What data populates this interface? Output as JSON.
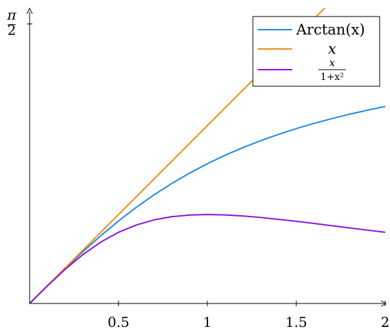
{
  "chart_data": {
    "type": "line",
    "xlim": [
      0,
      2
    ],
    "ylim": [
      0,
      1.66
    ],
    "grid": false,
    "legend_position": "top-right",
    "x_ticks": [
      {
        "value": 0.5,
        "label": "0.5"
      },
      {
        "value": 1,
        "label": "1"
      },
      {
        "value": 1.5,
        "label": "1.5"
      },
      {
        "value": 2,
        "label": "2"
      }
    ],
    "y_ticks": [
      {
        "value": 1.5708,
        "label_num": "π",
        "label_den": "2"
      }
    ],
    "series": [
      {
        "name": "Arctan(x)",
        "color": "#1e88e5",
        "x": [
          0,
          0.1,
          0.2,
          0.3,
          0.4,
          0.5,
          0.6,
          0.7,
          0.8,
          0.9,
          1.0,
          1.1,
          1.2,
          1.3,
          1.4,
          1.5,
          1.6,
          1.7,
          1.8,
          1.9,
          2.0
        ],
        "y": [
          0,
          0.0997,
          0.1974,
          0.2915,
          0.3805,
          0.4636,
          0.5404,
          0.6107,
          0.6747,
          0.7328,
          0.7854,
          0.833,
          0.8761,
          0.9151,
          0.9505,
          0.9828,
          1.0122,
          1.0391,
          1.0637,
          1.0863,
          1.1071
        ]
      },
      {
        "name": "x",
        "color": "#ef8a17",
        "x": [
          0,
          1.66
        ],
        "y": [
          0,
          1.66
        ]
      },
      {
        "name_num": "x",
        "name_den": "1+x²",
        "color": "#8a12e0",
        "x": [
          0,
          0.1,
          0.2,
          0.3,
          0.4,
          0.5,
          0.6,
          0.7,
          0.8,
          0.9,
          1.0,
          1.1,
          1.2,
          1.3,
          1.4,
          1.5,
          1.6,
          1.7,
          1.8,
          1.9,
          2.0
        ],
        "y": [
          0,
          0.099,
          0.1923,
          0.2752,
          0.3448,
          0.4,
          0.4412,
          0.4698,
          0.4878,
          0.4972,
          0.5,
          0.4977,
          0.4918,
          0.4833,
          0.473,
          0.4615,
          0.4494,
          0.437,
          0.4245,
          0.4121,
          0.4
        ]
      }
    ]
  }
}
